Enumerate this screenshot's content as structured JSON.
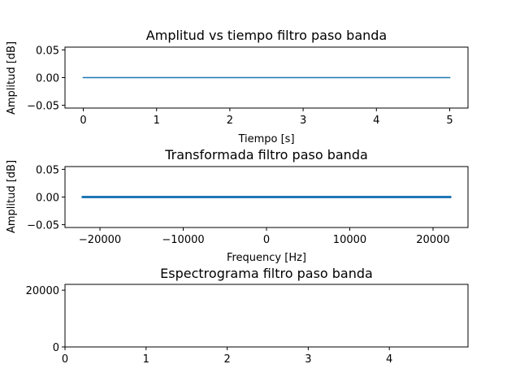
{
  "chart_data": [
    {
      "type": "line",
      "title": "Amplitud vs tiempo filtro paso banda",
      "xlabel": "Tiempo [s]",
      "ylabel": "Amplitud [dB]",
      "xlim": [
        -0.25,
        5.25
      ],
      "ylim": [
        -0.055,
        0.055
      ],
      "xticks": [
        0,
        1,
        2,
        3,
        4,
        5
      ],
      "xtick_labels": [
        "0",
        "1",
        "2",
        "3",
        "4",
        "5"
      ],
      "yticks": [
        0.05,
        0.0,
        -0.05
      ],
      "ytick_labels": [
        "0.05",
        "0.00",
        "−0.05"
      ],
      "series": [
        {
          "x": [
            0,
            5
          ],
          "values": [
            0,
            0
          ],
          "color": "#1f77b4",
          "linewidth": 1.6
        }
      ]
    },
    {
      "type": "line",
      "title": "Transformada filtro paso banda",
      "xlabel": "Frequency [Hz]",
      "ylabel": "Amplitud [dB]",
      "xlim": [
        -24200,
        24200
      ],
      "ylim": [
        -0.055,
        0.055
      ],
      "xticks": [
        -20000,
        -10000,
        0,
        10000,
        20000
      ],
      "xtick_labels": [
        "−20000",
        "−10000",
        "0",
        "10000",
        "20000"
      ],
      "yticks": [
        0.05,
        0.0,
        -0.05
      ],
      "ytick_labels": [
        "0.05",
        "0.00",
        "−0.05"
      ],
      "series": [
        {
          "x": [
            -22050,
            22050
          ],
          "values": [
            0,
            0
          ],
          "color": "#1f77b4",
          "linewidth": 3
        }
      ]
    },
    {
      "type": "heatmap",
      "title": "Espectrograma filtro paso banda",
      "xlabel": "",
      "ylabel": "",
      "xlim": [
        0,
        4.97
      ],
      "ylim": [
        0,
        22050
      ],
      "xticks": [
        0,
        1,
        2,
        3,
        4
      ],
      "xtick_labels": [
        "0",
        "1",
        "2",
        "3",
        "4"
      ],
      "yticks": [
        20000,
        0
      ],
      "ytick_labels": [
        "20000",
        "0"
      ],
      "series": []
    }
  ]
}
